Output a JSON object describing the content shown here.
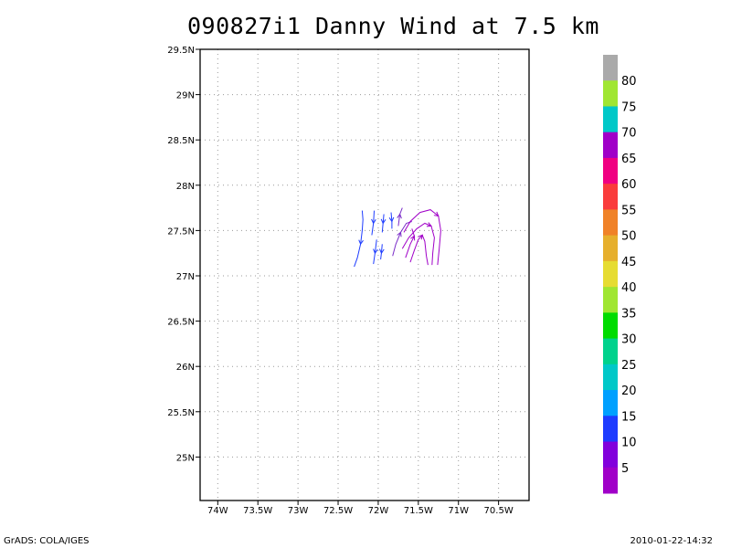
{
  "chart_data": {
    "type": "vector-streamline",
    "title": "090827i1 Danny Wind at 7.5 km",
    "x_ticks": [
      "74W",
      "73.5W",
      "73W",
      "72.5W",
      "72W",
      "71.5W",
      "71W",
      "70.5W"
    ],
    "x_tick_values": [
      -74,
      -73.5,
      -73,
      -72.5,
      -72,
      -71.5,
      -71,
      -70.5
    ],
    "y_ticks": [
      "25N",
      "25.5N",
      "26N",
      "26.5N",
      "27N",
      "27.5N",
      "28N",
      "28.5N",
      "29N",
      "29.5N"
    ],
    "y_tick_values": [
      25,
      25.5,
      26,
      26.5,
      27,
      27.5,
      28,
      28.5,
      29,
      29.5
    ],
    "xlim": [
      -74.22,
      -70.12
    ],
    "ylim": [
      24.52,
      29.5
    ],
    "grid": true,
    "colorbar": {
      "labels": [
        "5",
        "10",
        "15",
        "20",
        "25",
        "30",
        "35",
        "40",
        "45",
        "50",
        "55",
        "60",
        "65",
        "70",
        "75",
        "80"
      ],
      "colors": [
        "#a000c8",
        "#8200dc",
        "#1e3cff",
        "#00a0ff",
        "#00c8c8",
        "#00d28c",
        "#00dc00",
        "#a0e632",
        "#e6dc32",
        "#e6af2d",
        "#f08228",
        "#fa3c3c",
        "#f00082",
        "#a000c8",
        "#00c8c8",
        "#a0e632",
        "#aaaaaa"
      ]
    },
    "streamlines": [
      {
        "color": "#1e3cff",
        "points": [
          [
            -72.2,
            27.72
          ],
          [
            -72.19,
            27.62
          ],
          [
            -72.2,
            27.5
          ],
          [
            -72.22,
            27.35
          ],
          [
            -72.26,
            27.2
          ],
          [
            -72.3,
            27.1
          ]
        ]
      },
      {
        "color": "#1e3cff",
        "points": [
          [
            -72.05,
            27.72
          ],
          [
            -72.06,
            27.58
          ],
          [
            -72.08,
            27.45
          ]
        ]
      },
      {
        "color": "#1e3cff",
        "points": [
          [
            -72.02,
            27.4
          ],
          [
            -72.04,
            27.25
          ],
          [
            -72.06,
            27.13
          ]
        ]
      },
      {
        "color": "#1e3cff",
        "points": [
          [
            -71.93,
            27.68
          ],
          [
            -71.94,
            27.58
          ],
          [
            -71.95,
            27.48
          ]
        ]
      },
      {
        "color": "#1e3cff",
        "points": [
          [
            -71.95,
            27.35
          ],
          [
            -71.96,
            27.25
          ],
          [
            -71.97,
            27.18
          ]
        ]
      },
      {
        "color": "#1e3cff",
        "points": [
          [
            -71.84,
            27.7
          ],
          [
            -71.83,
            27.6
          ],
          [
            -71.83,
            27.52
          ]
        ]
      },
      {
        "color": "#7a2cc8",
        "points": [
          [
            -71.75,
            27.55
          ],
          [
            -71.73,
            27.68
          ],
          [
            -71.7,
            27.75
          ]
        ]
      },
      {
        "color": "#7a2cc8",
        "points": [
          [
            -71.82,
            27.22
          ],
          [
            -71.78,
            27.35
          ],
          [
            -71.72,
            27.48
          ],
          [
            -71.65,
            27.58
          ],
          [
            -71.58,
            27.6
          ]
        ]
      },
      {
        "color": "#a000c8",
        "points": [
          [
            -71.68,
            27.48
          ],
          [
            -71.6,
            27.6
          ],
          [
            -71.48,
            27.7
          ],
          [
            -71.35,
            27.73
          ],
          [
            -71.25,
            27.66
          ],
          [
            -71.22,
            27.5
          ],
          [
            -71.24,
            27.3
          ],
          [
            -71.26,
            27.12
          ]
        ]
      },
      {
        "color": "#a000c8",
        "points": [
          [
            -71.7,
            27.3
          ],
          [
            -71.62,
            27.42
          ],
          [
            -71.52,
            27.52
          ],
          [
            -71.42,
            27.58
          ],
          [
            -71.34,
            27.55
          ],
          [
            -71.3,
            27.42
          ],
          [
            -71.32,
            27.25
          ],
          [
            -71.33,
            27.12
          ]
        ]
      },
      {
        "color": "#a000c8",
        "points": [
          [
            -71.6,
            27.15
          ],
          [
            -71.55,
            27.28
          ],
          [
            -71.5,
            27.4
          ],
          [
            -71.45,
            27.45
          ],
          [
            -71.42,
            27.38
          ],
          [
            -71.4,
            27.22
          ],
          [
            -71.38,
            27.12
          ]
        ]
      },
      {
        "color": "#a000c8",
        "points": [
          [
            -71.66,
            27.2
          ],
          [
            -71.6,
            27.35
          ],
          [
            -71.55,
            27.44
          ],
          [
            -71.58,
            27.52
          ]
        ]
      }
    ]
  },
  "footer": {
    "left": "GrADS: COLA/IGES",
    "right": "2010-01-22-14:32"
  }
}
